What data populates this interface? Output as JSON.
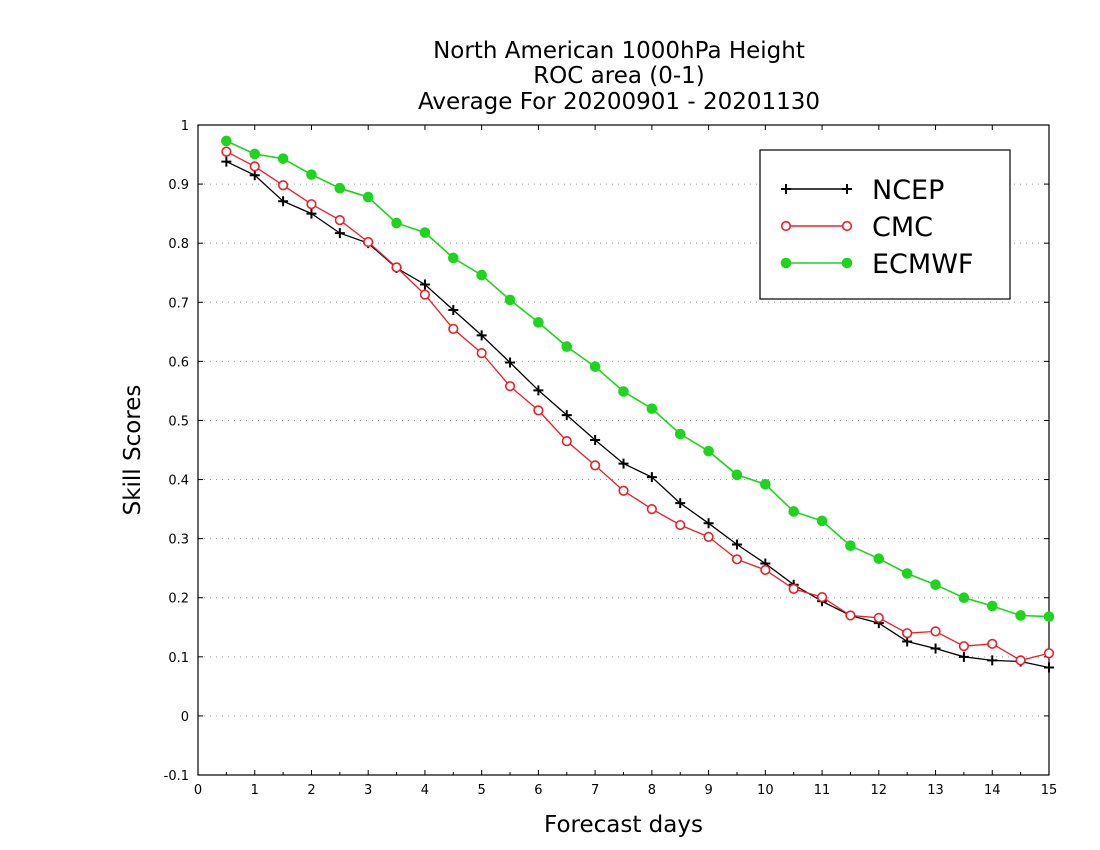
{
  "chart_data": {
    "type": "line",
    "title_lines": [
      "North American 1000hPa Height",
      "ROC area (0-1)",
      "Average For 20200901 - 20201130"
    ],
    "xlabel": "Forecast days",
    "ylabel": "Skill Scores",
    "xlim": [
      0,
      15
    ],
    "ylim": [
      -0.1,
      1
    ],
    "x_ticks": [
      0,
      1,
      2,
      3,
      4,
      5,
      6,
      7,
      8,
      9,
      10,
      11,
      12,
      13,
      14,
      15
    ],
    "x_tick_labels": [
      "0",
      "1",
      "2",
      "3",
      "4",
      "5",
      "6",
      "7",
      "8",
      "9",
      "10",
      "11",
      "12",
      "13",
      "14",
      "15"
    ],
    "y_ticks": [
      -0.1,
      0,
      0.1,
      0.2,
      0.3,
      0.4,
      0.5,
      0.6,
      0.7,
      0.8,
      0.9,
      1
    ],
    "y_tick_labels": [
      "-0.1",
      "0",
      "0.1",
      "0.2",
      "0.3",
      "0.4",
      "0.5",
      "0.6",
      "0.7",
      "0.8",
      "0.9",
      "1"
    ],
    "grid": "horizontal dotted",
    "legend_position": "top-right",
    "x": [
      0.5,
      1,
      1.5,
      2,
      2.5,
      3,
      3.5,
      4,
      4.5,
      5,
      5.5,
      6,
      6.5,
      7,
      7.5,
      8,
      8.5,
      9,
      9.5,
      10,
      10.5,
      11,
      11.5,
      12,
      12.5,
      13,
      13.5,
      14,
      14.5,
      15
    ],
    "series": [
      {
        "name": "NCEP",
        "color": "#000000",
        "marker": "plus",
        "values": [
          0.938,
          0.915,
          0.871,
          0.85,
          0.817,
          0.8,
          0.758,
          0.73,
          0.687,
          0.644,
          0.598,
          0.551,
          0.509,
          0.467,
          0.427,
          0.404,
          0.36,
          0.326,
          0.29,
          0.258,
          0.222,
          0.194,
          0.17,
          0.157,
          0.126,
          0.114,
          0.1,
          0.094,
          0.092,
          0.082
        ]
      },
      {
        "name": "CMC",
        "color": "#e8202a",
        "marker": "open-circle",
        "values": [
          0.955,
          0.93,
          0.898,
          0.866,
          0.839,
          0.802,
          0.759,
          0.713,
          0.655,
          0.614,
          0.558,
          0.517,
          0.465,
          0.424,
          0.381,
          0.35,
          0.323,
          0.303,
          0.265,
          0.247,
          0.215,
          0.201,
          0.17,
          0.166,
          0.14,
          0.143,
          0.118,
          0.122,
          0.094,
          0.106
        ]
      },
      {
        "name": "ECMWF",
        "color": "#1ed41e",
        "marker": "filled-circle",
        "values": [
          0.973,
          0.951,
          0.943,
          0.916,
          0.893,
          0.878,
          0.834,
          0.818,
          0.775,
          0.746,
          0.704,
          0.666,
          0.625,
          0.591,
          0.549,
          0.52,
          0.477,
          0.448,
          0.408,
          0.392,
          0.346,
          0.33,
          0.288,
          0.266,
          0.241,
          0.222,
          0.2,
          0.186,
          0.17,
          0.168
        ]
      }
    ]
  }
}
